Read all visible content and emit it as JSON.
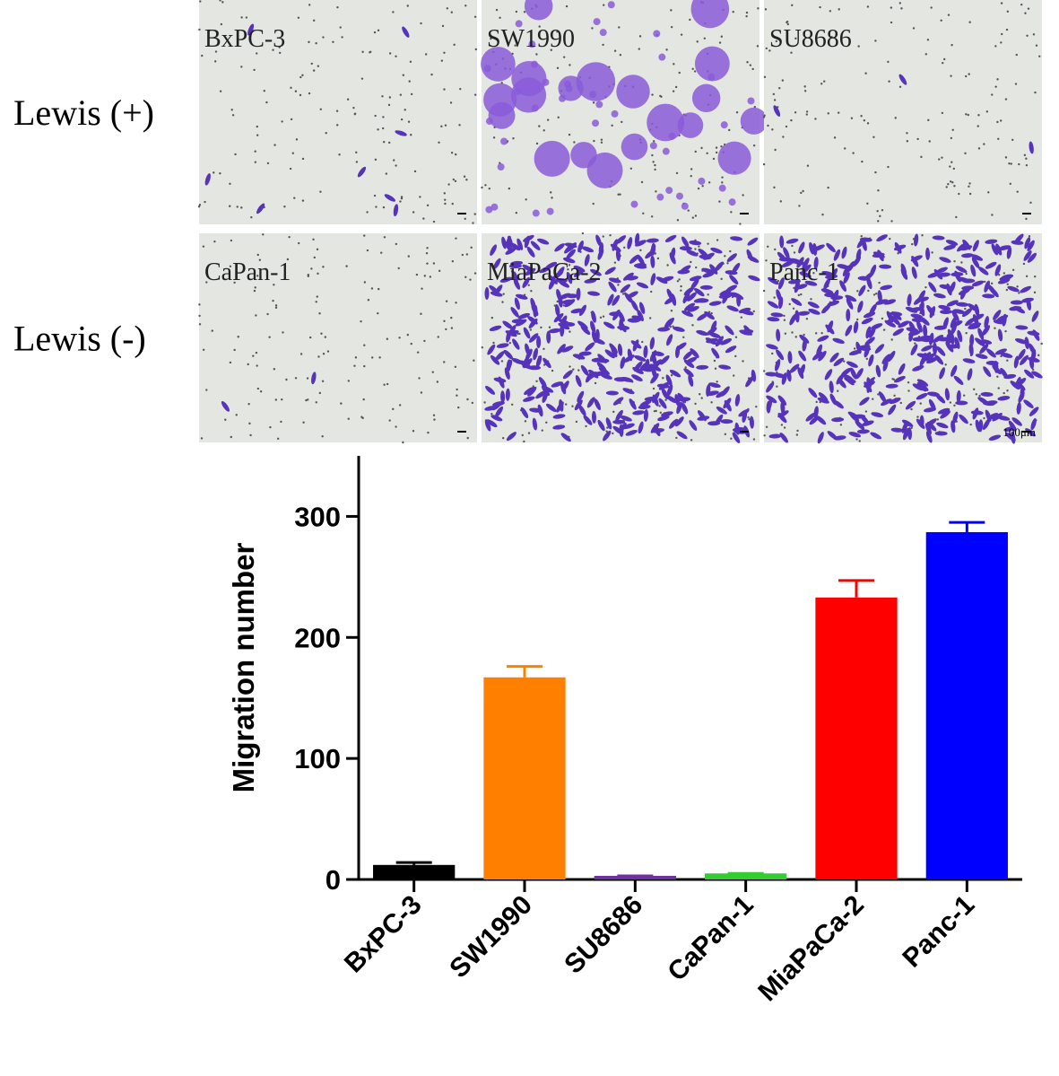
{
  "micrographs": {
    "rows": [
      {
        "label": "Lewis (+)",
        "panels": [
          "BxPC-3",
          "SW1990",
          "SU8686"
        ]
      },
      {
        "label": "Lewis (-)",
        "panels": [
          "CaPan-1",
          "MiaPaCa-2",
          "Panc-1"
        ]
      }
    ],
    "scale_bar": "100μm"
  },
  "chart_data": {
    "type": "bar",
    "y_label": "Migration number",
    "categories": [
      "BxPC-3",
      "SW1990",
      "SU8686",
      "CaPan-1",
      "MiaPaCa-2",
      "Panc-1"
    ],
    "values": [
      12,
      167,
      3,
      5,
      233,
      287
    ],
    "errors": [
      2,
      9,
      0,
      0,
      14,
      8
    ],
    "colors": [
      "#000000",
      "#ff8000",
      "#7030a0",
      "#33cc33",
      "#ff0000",
      "#0000ff"
    ],
    "ylim": [
      0,
      350
    ],
    "yticks": [
      0,
      100,
      200,
      300
    ],
    "grid": false
  }
}
